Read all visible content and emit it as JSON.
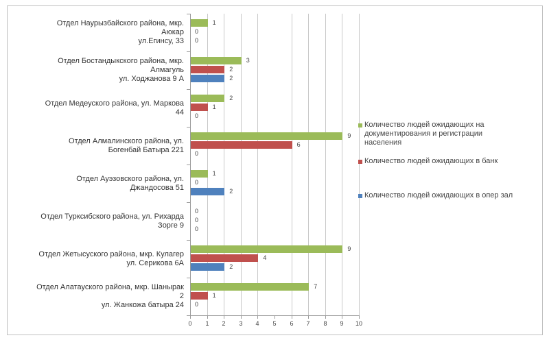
{
  "chart_data": {
    "type": "bar",
    "orientation": "horizontal",
    "title": "",
    "xlabel": "",
    "ylabel": "",
    "xlim": [
      0,
      10
    ],
    "x_ticks": [
      "0",
      "1",
      "2",
      "3",
      "4",
      "5",
      "6",
      "7",
      "8",
      "9",
      "10"
    ],
    "grid": true,
    "legend_position": "right",
    "categories": [
      "Отдел Наурызбайского района, мкр. Аюкар ул.Егинсу, 33",
      "Отдел Бостандыкского района, мкр. Алмагуль ул. Ходжанова 9 А",
      "Отдел Медеуского района, ул. Маркова 44",
      "Отдел Алмалинского района, ул. Богенбай Батыра 221",
      "Отдел Ауэзовского района, ул. Джандосова 51",
      "Отдел Турксибского района, ул. Рихарда Зорге 9",
      "Отдел Жетысуского района, мкр. Кулагер ул. Серикова 6А",
      "Отдел Алатауского района, мкр. Шанырак 2 ул. Жанкожа батыра 24"
    ],
    "category_lines": [
      [
        "Отдел  Наурызбайского района, мкр.",
        "Аюкар",
        "ул.Егинсу,  33"
      ],
      [
        "Отдел  Бостандыкского района, мкр.",
        "Алмагуль",
        "ул.  Ходжанова 9 А"
      ],
      [
        "Отдел  Медеуского района, ул.  Маркова",
        "44"
      ],
      [
        "Отдел  Алмалинского  района, ул.",
        "Богенбай Батыра 221"
      ],
      [
        "Отдел  Ауэзовского  района, ул.",
        "Джандосова 51"
      ],
      [
        "Отдел  Турксибского  района, ул.  Рихарда",
        "Зорге 9"
      ],
      [
        "Отдел  Жетысуского района, мкр. Кулагер",
        "ул.  Серикова 6А"
      ],
      [
        "Отдел  Алатауского района, мкр. Шанырак",
        "2",
        "ул.  Жанкожа  батыра 24"
      ]
    ],
    "series": [
      {
        "name": "Количество людей ожидающих на документирования и регистрации населения",
        "color": "#9BBB59",
        "values": [
          1,
          3,
          2,
          9,
          1,
          0,
          9,
          7
        ]
      },
      {
        "name": "Количество людей ожидающих в банк",
        "color": "#C0504D",
        "values": [
          0,
          2,
          1,
          6,
          0,
          0,
          4,
          1
        ]
      },
      {
        "name": "Количество людей ожидающих в опер зал",
        "color": "#4F81BD",
        "values": [
          0,
          2,
          0,
          0,
          2,
          0,
          2,
          0
        ]
      }
    ]
  },
  "legend": {
    "items": [
      {
        "lines": [
          "Количество людей  ожидающих  на",
          "документирования  и регистрации",
          "населения"
        ],
        "color": "#9BBB59"
      },
      {
        "lines": [
          "Количество людей  ожидающих  в банк"
        ],
        "color": "#C0504D"
      },
      {
        "lines": [
          "Количество людей  ожидающих  в опер зал"
        ],
        "color": "#4F81BD"
      }
    ]
  }
}
